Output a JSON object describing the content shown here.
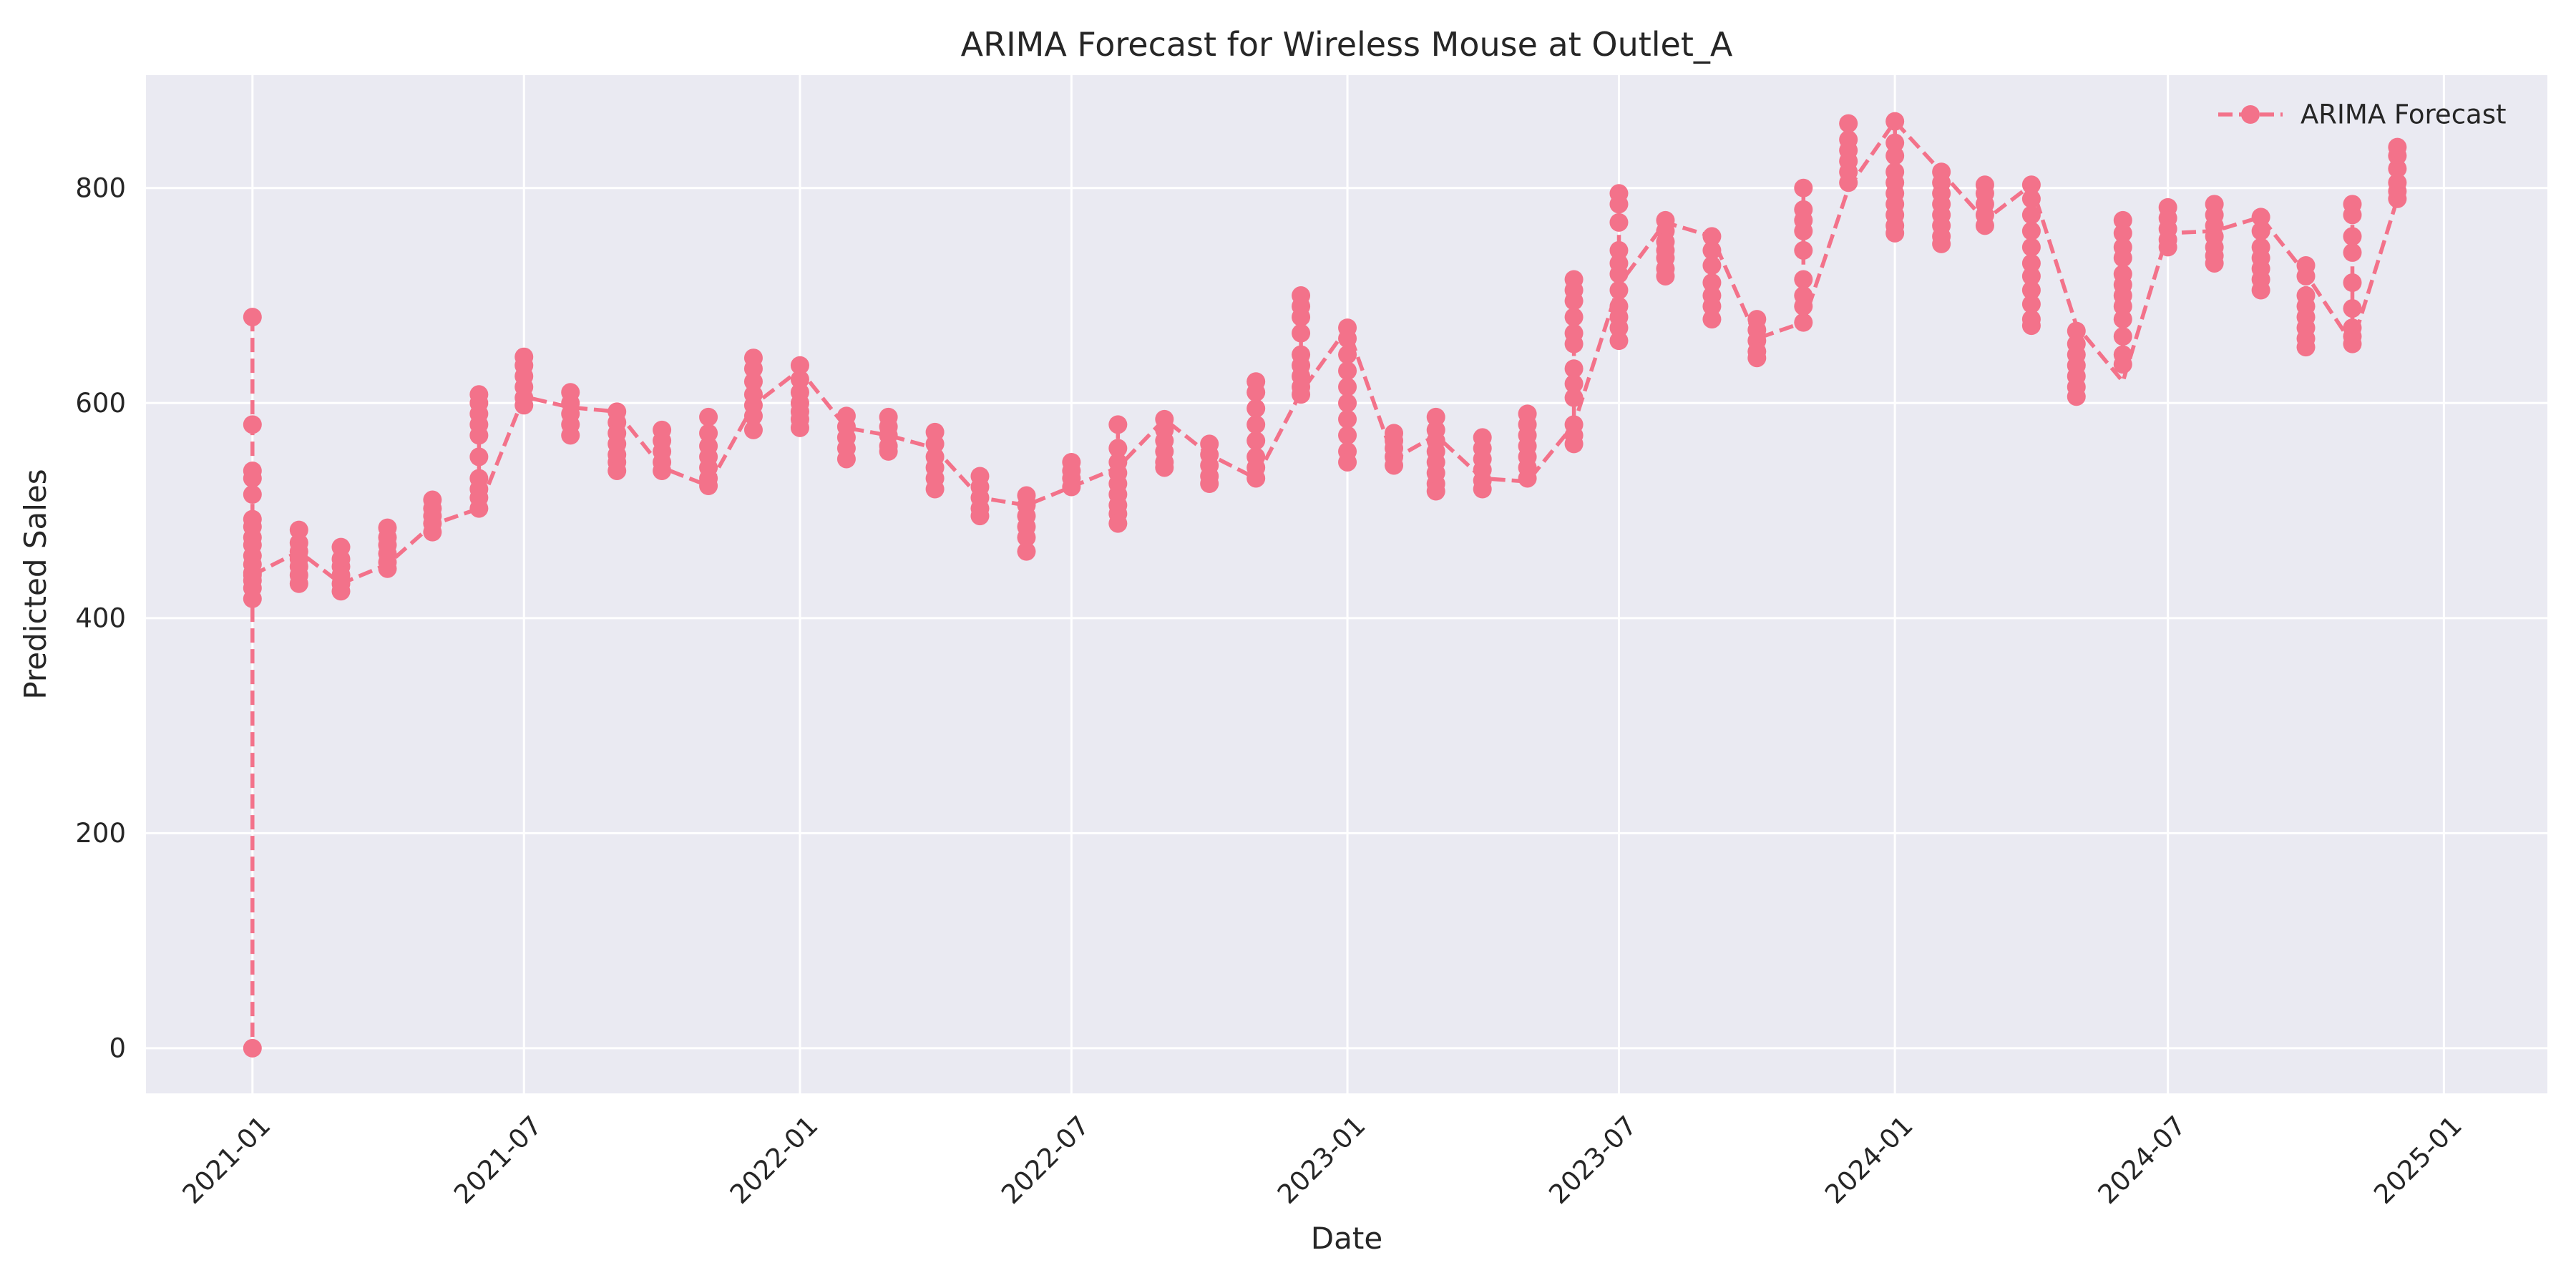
{
  "chart_data": {
    "type": "line",
    "title": "ARIMA Forecast for Wireless Mouse at Outlet_A",
    "xlabel": "Date",
    "ylabel": "Predicted Sales",
    "xlim": [
      "2020-10-22",
      "2025-03-11"
    ],
    "ylim": [
      -42,
      905
    ],
    "x_ticks": [
      "2021-01",
      "2021-07",
      "2022-01",
      "2022-07",
      "2023-01",
      "2023-07",
      "2024-01",
      "2024-07",
      "2025-01"
    ],
    "y_ticks": [
      0,
      200,
      400,
      600,
      800
    ],
    "grid": true,
    "background": "#eaeaf2",
    "line_color": "#f3728a",
    "line_style": "dashed",
    "marker": "circle",
    "legend": {
      "position": "top-right",
      "entries": [
        "ARIMA Forecast"
      ]
    },
    "series": [
      {
        "name": "ARIMA Forecast",
        "groups": [
          {
            "date": "2021-01-01",
            "values": [
              680,
              580,
              537,
              530,
              515,
              492,
              485,
              475,
              468,
              458,
              450,
              442,
              435,
              428,
              418,
              0,
              440
            ]
          },
          {
            "date": "2021-02-01",
            "values": [
              482,
              470,
              462,
              455,
              448,
              440,
              432
            ]
          },
          {
            "date": "2021-03-01",
            "values": [
              466,
              455,
              448,
              440,
              432,
              425
            ]
          },
          {
            "date": "2021-04-01",
            "values": [
              484,
              475,
              468,
              460,
              452,
              446
            ]
          },
          {
            "date": "2021-05-01",
            "values": [
              510,
              502,
              495,
              488,
              480
            ]
          },
          {
            "date": "2021-06-01",
            "values": [
              608,
              600,
              590,
              580,
              570,
              550,
              530,
              520,
              512,
              502
            ]
          },
          {
            "date": "2021-07-01",
            "values": [
              643,
              635,
              625,
              615,
              605,
              598
            ]
          },
          {
            "date": "2021-08-01",
            "values": [
              610,
              600,
              590,
              580,
              570
            ]
          },
          {
            "date": "2021-09-01",
            "values": [
              592,
              582,
              572,
              562,
              552,
              545,
              537
            ]
          },
          {
            "date": "2021-10-01",
            "values": [
              575,
              565,
              555,
              545,
              537
            ]
          },
          {
            "date": "2021-11-01",
            "values": [
              587,
              572,
              560,
              550,
              540,
              530,
              523
            ]
          },
          {
            "date": "2021-12-01",
            "values": [
              642,
              632,
              620,
              608,
              598,
              588,
              575
            ]
          },
          {
            "date": "2022-01-01",
            "values": [
              635,
              622,
              610,
              600,
              592,
              585,
              577
            ]
          },
          {
            "date": "2022-02-01",
            "values": [
              588,
              578,
              568,
              558,
              548
            ]
          },
          {
            "date": "2022-03-01",
            "values": [
              587,
              578,
              570,
              560,
              555
            ]
          },
          {
            "date": "2022-04-01",
            "values": [
              573,
              562,
              550,
              540,
              530,
              520
            ]
          },
          {
            "date": "2022-05-01",
            "values": [
              532,
              522,
              512,
              502,
              495
            ]
          },
          {
            "date": "2022-06-01",
            "values": [
              514,
              505,
              495,
              485,
              475,
              462
            ]
          },
          {
            "date": "2022-07-01",
            "values": [
              545,
              537,
              530,
              522
            ]
          },
          {
            "date": "2022-08-01",
            "values": [
              580,
              558,
              545,
              535,
              525,
              515,
              505,
              497,
              488
            ]
          },
          {
            "date": "2022-09-01",
            "values": [
              585,
              575,
              565,
              555,
              545,
              540
            ]
          },
          {
            "date": "2022-10-01",
            "values": [
              562,
              552,
              542,
              532,
              525
            ]
          },
          {
            "date": "2022-11-01",
            "values": [
              620,
              610,
              595,
              580,
              565,
              550,
              540,
              530
            ]
          },
          {
            "date": "2022-12-01",
            "values": [
              700,
              690,
              680,
              665,
              645,
              635,
              625,
              615,
              608
            ]
          },
          {
            "date": "2023-01-01",
            "values": [
              670,
              660,
              645,
              630,
              615,
              600,
              585,
              570,
              555,
              545
            ]
          },
          {
            "date": "2023-02-01",
            "values": [
              572,
              565,
              558,
              550,
              542
            ]
          },
          {
            "date": "2023-03-01",
            "values": [
              587,
              575,
              565,
              555,
              545,
              535,
              525,
              518
            ]
          },
          {
            "date": "2023-04-01",
            "values": [
              568,
              558,
              548,
              538,
              528,
              520
            ]
          },
          {
            "date": "2023-05-01",
            "values": [
              590,
              580,
              570,
              560,
              550,
              540,
              530
            ]
          },
          {
            "date": "2023-06-01",
            "values": [
              715,
              705,
              695,
              680,
              665,
              655,
              632,
              618,
              605,
              580,
              570,
              562
            ]
          },
          {
            "date": "2023-07-01",
            "values": [
              795,
              785,
              768,
              742,
              730,
              720,
              705,
              690,
              680,
              670,
              658
            ]
          },
          {
            "date": "2023-08-01",
            "values": [
              770,
              760,
              750,
              742,
              735,
              725,
              718
            ]
          },
          {
            "date": "2023-09-01",
            "values": [
              755,
              742,
              728,
              712,
              700,
              690,
              678
            ]
          },
          {
            "date": "2023-10-01",
            "values": [
              678,
              668,
              658,
              648,
              642
            ]
          },
          {
            "date": "2023-11-01",
            "values": [
              800,
              780,
              770,
              760,
              742,
              715,
              700,
              690,
              675
            ]
          },
          {
            "date": "2023-12-01",
            "values": [
              860,
              845,
              835,
              825,
              815,
              805
            ]
          },
          {
            "date": "2024-01-01",
            "values": [
              862,
              842,
              830,
              815,
              805,
              795,
              785,
              775,
              765,
              758
            ]
          },
          {
            "date": "2024-02-01",
            "values": [
              815,
              805,
              795,
              785,
              775,
              765,
              755,
              748
            ]
          },
          {
            "date": "2024-03-01",
            "values": [
              803,
              795,
              785,
              775,
              765
            ]
          },
          {
            "date": "2024-04-01",
            "values": [
              803,
              790,
              775,
              760,
              745,
              730,
              718,
              705,
              692,
              678,
              672
            ]
          },
          {
            "date": "2024-05-01",
            "values": [
              667,
              655,
              645,
              635,
              625,
              615,
              606
            ]
          },
          {
            "date": "2024-06-01",
            "values": [
              770,
              758,
              745,
              735,
              720,
              710,
              700,
              690,
              678,
              662,
              645,
              636
            ]
          },
          {
            "date": "2024-07-01",
            "values": [
              782,
              772,
              762,
              752,
              745
            ]
          },
          {
            "date": "2024-08-01",
            "values": [
              785,
              775,
              765,
              755,
              745,
              737,
              730
            ]
          },
          {
            "date": "2024-09-01",
            "values": [
              773,
              760,
              745,
              735,
              725,
              715,
              705
            ]
          },
          {
            "date": "2024-10-01",
            "values": [
              728,
              718,
              700,
              690,
              680,
              670,
              660,
              652
            ]
          },
          {
            "date": "2024-11-01",
            "values": [
              785,
              775,
              755,
              740,
              712,
              688,
              670,
              662,
              655
            ]
          },
          {
            "date": "2024-12-01",
            "values": [
              838,
              830,
              818,
              805,
              797,
              790
            ]
          }
        ],
        "trend": [
          [
            "2021-01-01",
            440
          ],
          [
            "2021-02-01",
            462
          ],
          [
            "2021-03-01",
            432
          ],
          [
            "2021-04-01",
            450
          ],
          [
            "2021-05-01",
            487
          ],
          [
            "2021-06-01",
            502
          ],
          [
            "2021-07-01",
            606
          ],
          [
            "2021-08-01",
            596
          ],
          [
            "2021-09-01",
            592
          ],
          [
            "2021-10-01",
            540
          ],
          [
            "2021-11-01",
            523
          ],
          [
            "2021-12-01",
            598
          ],
          [
            "2022-01-01",
            631
          ],
          [
            "2022-02-01",
            577
          ],
          [
            "2022-03-01",
            570
          ],
          [
            "2022-04-01",
            558
          ],
          [
            "2022-05-01",
            512
          ],
          [
            "2022-06-01",
            505
          ],
          [
            "2022-07-01",
            522
          ],
          [
            "2022-08-01",
            540
          ],
          [
            "2022-09-01",
            585
          ],
          [
            "2022-10-01",
            552
          ],
          [
            "2022-11-01",
            530
          ],
          [
            "2022-12-01",
            610
          ],
          [
            "2023-01-01",
            670
          ],
          [
            "2023-02-01",
            548
          ],
          [
            "2023-03-01",
            570
          ],
          [
            "2023-04-01",
            530
          ],
          [
            "2023-05-01",
            527
          ],
          [
            "2023-06-01",
            580
          ],
          [
            "2023-07-01",
            710
          ],
          [
            "2023-08-01",
            768
          ],
          [
            "2023-09-01",
            755
          ],
          [
            "2023-10-01",
            660
          ],
          [
            "2023-11-01",
            675
          ],
          [
            "2023-12-01",
            800
          ],
          [
            "2024-01-01",
            862
          ],
          [
            "2024-02-01",
            815
          ],
          [
            "2024-03-01",
            770
          ],
          [
            "2024-04-01",
            803
          ],
          [
            "2024-05-01",
            672
          ],
          [
            "2024-06-01",
            620
          ],
          [
            "2024-07-01",
            758
          ],
          [
            "2024-08-01",
            760
          ],
          [
            "2024-09-01",
            773
          ],
          [
            "2024-10-01",
            720
          ],
          [
            "2024-11-01",
            655
          ],
          [
            "2024-12-01",
            790
          ],
          [
            "2024-12-01",
            800
          ]
        ]
      }
    ]
  }
}
